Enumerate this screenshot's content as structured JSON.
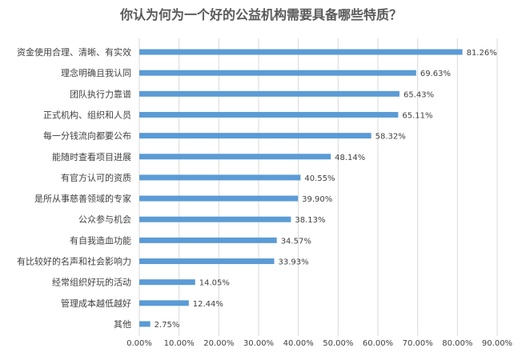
{
  "chart_data": {
    "type": "bar",
    "orientation": "horizontal",
    "title": "你认为何为一个好的公益机构需要具备哪些特质？",
    "categories": [
      "资金使用合理、清晰、有实效",
      "理念明确且我认同",
      "团队执行力靠谱",
      "正式机构、组织和人员",
      "每一分钱流向都要公布",
      "能随时查看项目进展",
      "有官方认可的资质",
      "是所从事慈善领域的专家",
      "公众参与机会",
      "有自我造血功能",
      "有比较好的名声和社会影响力",
      "经常组织好玩的活动",
      "管理成本越低越好",
      "其他"
    ],
    "values": [
      81.26,
      69.63,
      65.43,
      65.11,
      58.32,
      48.14,
      40.55,
      39.9,
      38.13,
      34.57,
      33.93,
      14.05,
      12.44,
      2.75
    ],
    "value_labels": [
      "81.26%",
      "69.63%",
      "65.43%",
      "65.11%",
      "58.32%",
      "48.14%",
      "40.55%",
      "39.90%",
      "38.13%",
      "34.57%",
      "33.93%",
      "14.05%",
      "12.44%",
      "2.75%"
    ],
    "x_ticks": [
      "0.00%",
      "10.00%",
      "20.00%",
      "30.00%",
      "40.00%",
      "50.00%",
      "60.00%",
      "70.00%",
      "80.00%",
      "90.00%"
    ],
    "xlim": [
      0,
      90
    ],
    "grid": true,
    "bar_color": "#5b9bd5",
    "xlabel": "",
    "ylabel": ""
  }
}
